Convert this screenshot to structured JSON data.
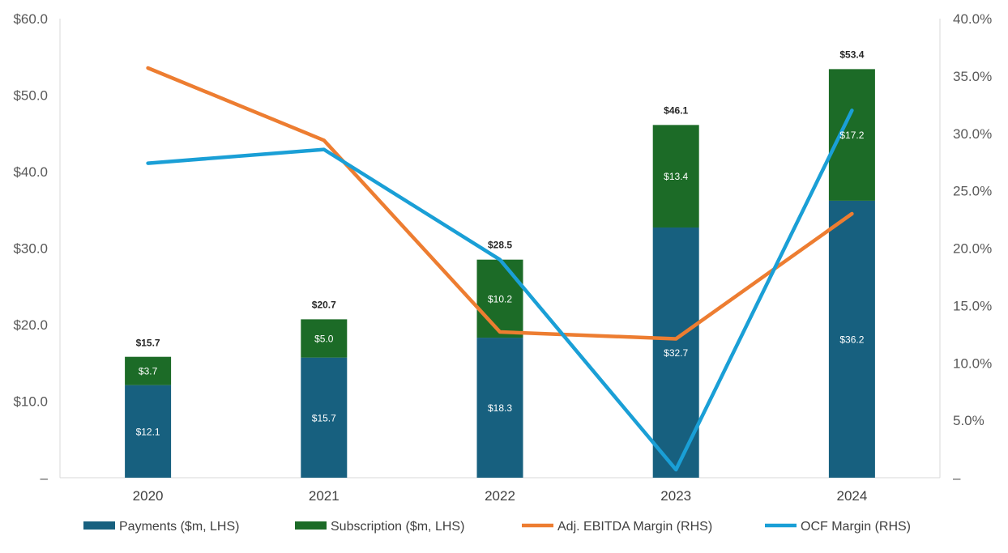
{
  "chart_data": {
    "type": "bar",
    "categories": [
      "2020",
      "2021",
      "2022",
      "2023",
      "2024"
    ],
    "series": [
      {
        "name": "Payments ($m, LHS)",
        "kind": "bar",
        "axis": "left",
        "color": "#17607f",
        "values": [
          12.1,
          15.7,
          18.3,
          32.7,
          36.2
        ],
        "labels": [
          "$12.1",
          "$15.7",
          "$18.3",
          "$32.7",
          "$36.2"
        ]
      },
      {
        "name": "Subscription ($m, LHS)",
        "kind": "bar",
        "axis": "left",
        "color": "#1c6b27",
        "values": [
          3.7,
          5.0,
          10.2,
          13.4,
          17.2
        ],
        "labels": [
          "$3.7",
          "$5.0",
          "$10.2",
          "$13.4",
          "$17.2"
        ]
      },
      {
        "name": "Adj. EBITDA Margin (RHS)",
        "kind": "line",
        "axis": "right",
        "color": "#ed7d31",
        "values": [
          35.7,
          29.4,
          12.7,
          12.1,
          23.0
        ]
      },
      {
        "name": "OCF Margin (RHS)",
        "kind": "line",
        "axis": "right",
        "color": "#1a9fd6",
        "values": [
          27.4,
          28.6,
          19.0,
          0.7,
          32.0
        ]
      }
    ],
    "totals": [
      15.7,
      20.7,
      28.5,
      46.1,
      53.4
    ],
    "total_labels": [
      "$15.7",
      "$20.7",
      "$28.5",
      "$46.1",
      "$53.4"
    ],
    "left_axis": {
      "ylim": [
        0,
        60
      ],
      "ticks": [
        0,
        10,
        20,
        30,
        40,
        50,
        60
      ],
      "tick_labels": [
        "–",
        "$10.0",
        "$20.0",
        "$30.0",
        "$40.0",
        "$50.0",
        "$60.0"
      ]
    },
    "right_axis": {
      "ylim": [
        0,
        40
      ],
      "ticks": [
        0,
        5,
        10,
        15,
        20,
        25,
        30,
        35,
        40
      ],
      "tick_labels": [
        "–",
        "5.0%",
        "10.0%",
        "15.0%",
        "20.0%",
        "25.0%",
        "30.0%",
        "35.0%",
        "40.0%"
      ]
    },
    "legend_position": "bottom",
    "title": "",
    "xlabel": "",
    "ylabel": ""
  }
}
